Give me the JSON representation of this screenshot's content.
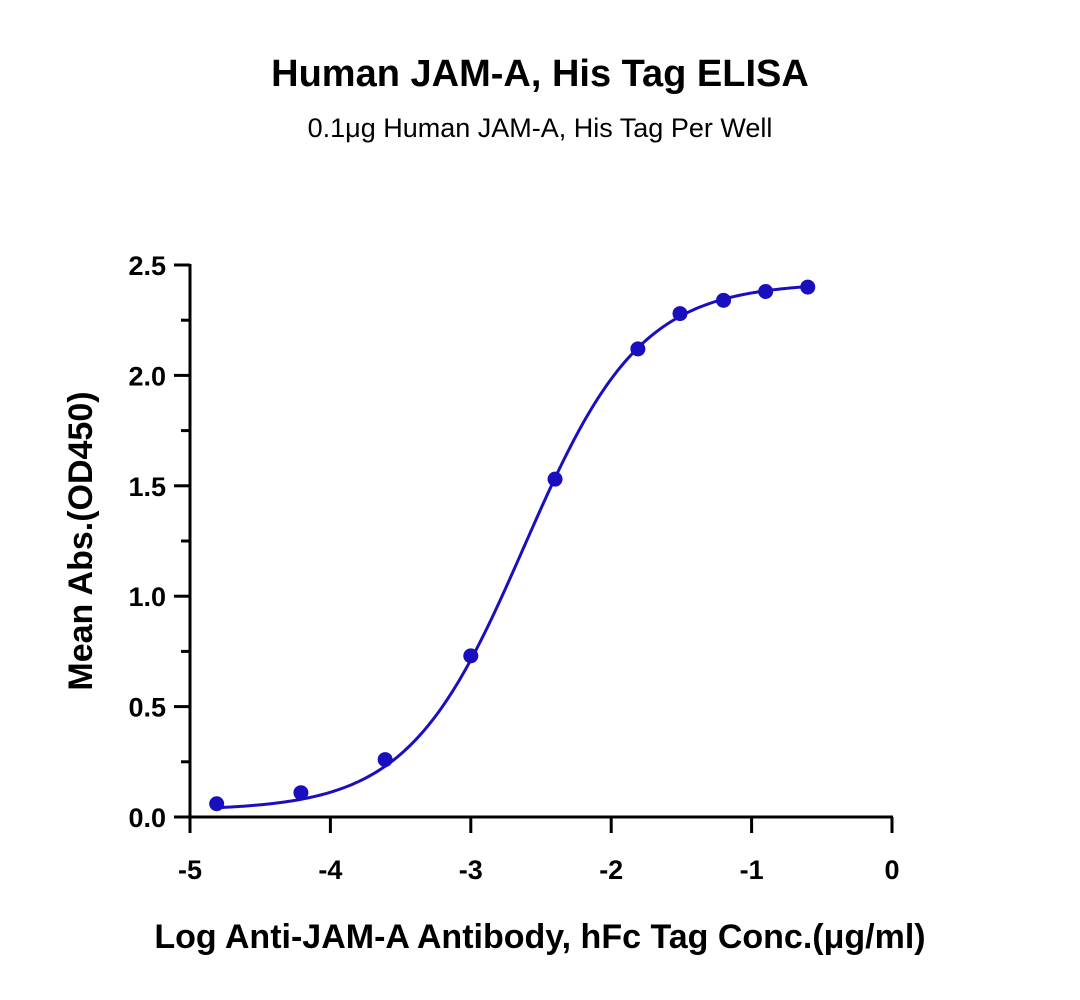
{
  "chart_data": {
    "type": "scatter",
    "title": "Human JAM-A, His Tag ELISA",
    "subtitle": "0.1μg Human JAM-A, His Tag Per Well",
    "xlabel": "Log Anti-JAM-A Antibody, hFc  Tag Conc.(μg/ml)",
    "ylabel": "Mean Abs.(OD450)",
    "xlim": [
      -5,
      0
    ],
    "ylim": [
      0,
      2.5
    ],
    "xticks": [
      "-5",
      "-4",
      "-3",
      "-2",
      "-1",
      "0"
    ],
    "yticks": [
      "0.0",
      "0.5",
      "1.0",
      "1.5",
      "2.0",
      "2.5"
    ],
    "grid": false,
    "fit": "four-parameter sigmoidal curve through points",
    "series_color": "#1a0fbf",
    "series": [
      {
        "x": [
          -4.81,
          -4.21,
          -3.61,
          -3.0,
          -2.4,
          -1.81,
          -1.51,
          -1.2,
          -0.9,
          -0.6
        ],
        "y": [
          0.06,
          0.11,
          0.26,
          0.73,
          1.53,
          2.12,
          2.28,
          2.34,
          2.38,
          2.4
        ]
      }
    ]
  }
}
